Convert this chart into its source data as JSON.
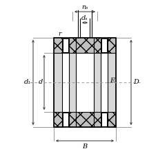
{
  "bg_color": "#ffffff",
  "line_color": "#000000",
  "gray_color": "#888888",
  "dim_color": "#444444",
  "fig_width": 2.3,
  "fig_height": 2.33,
  "dpi": 100,
  "labels": {
    "ns": "nₛ",
    "ds": "dₛ",
    "r": "r",
    "d1": "d₁",
    "d": "d",
    "E": "E",
    "D": "D",
    "B": "B"
  }
}
